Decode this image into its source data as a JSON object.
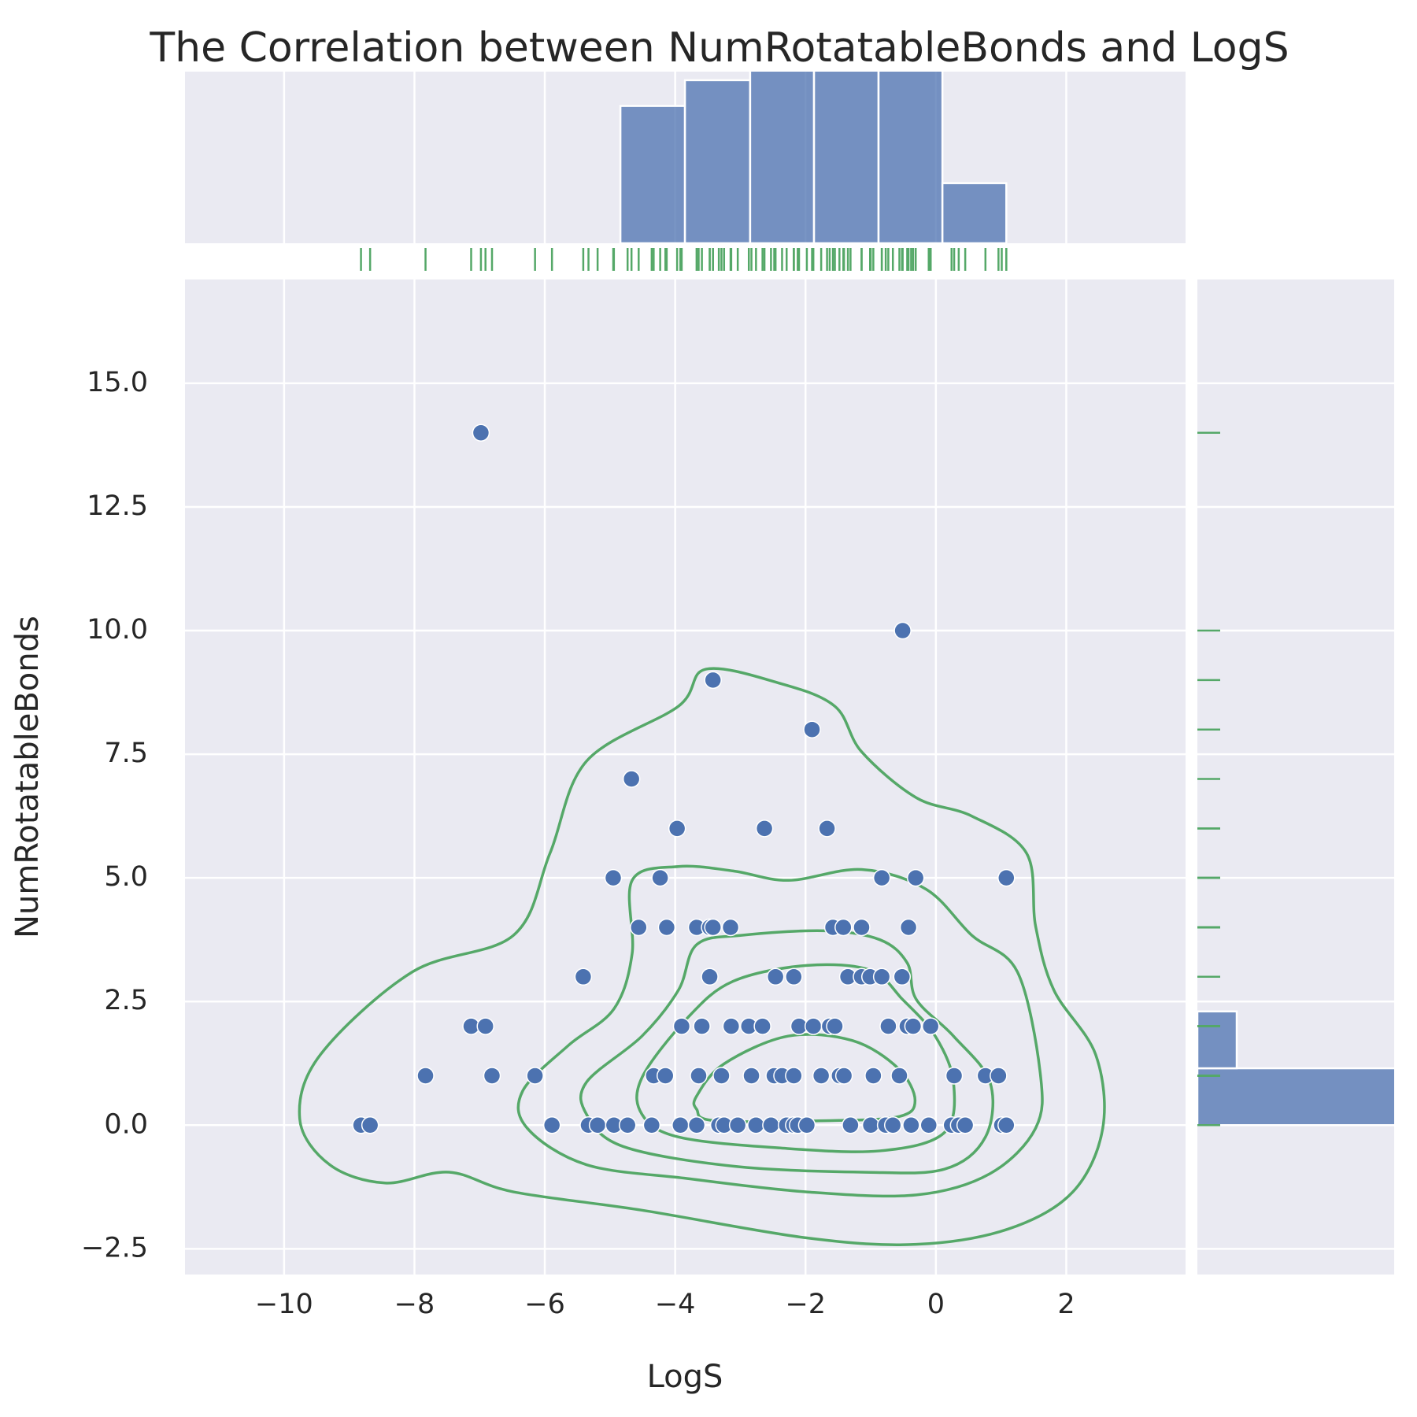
{
  "chart_data": {
    "type": "scatter",
    "title": "The Correlation between NumRotatableBonds and LogS",
    "xlabel": "LogS",
    "ylabel": "NumRotatableBonds",
    "color": "#4c72b0",
    "x": [
      -6.98,
      -0.51,
      -3.42,
      -1.9,
      -4.67,
      -3.97,
      -2.63,
      -1.67,
      -4.95,
      -4.23,
      -0.83,
      -0.31,
      1.08,
      -4.56,
      -4.13,
      -3.67,
      -3.47,
      -3.42,
      -3.15,
      -1.58,
      -1.42,
      -1.14,
      -0.42,
      -5.41,
      -3.47,
      -2.46,
      -2.18,
      -1.35,
      -1.14,
      -1.01,
      -0.83,
      -0.52,
      -7.13,
      -6.91,
      -3.9,
      -3.59,
      -3.14,
      -2.87,
      -2.66,
      -2.1,
      -1.88,
      -1.63,
      -1.55,
      -0.73,
      -0.44,
      -0.35,
      -0.08,
      -7.83,
      -6.81,
      -6.15,
      -4.33,
      -4.15,
      -3.64,
      -3.29,
      -2.83,
      -2.48,
      -2.36,
      -2.18,
      -1.76,
      -1.48,
      -1.41,
      -0.96,
      -0.56,
      0.28,
      0.76,
      0.96,
      -8.82,
      -8.68,
      -5.89,
      -5.33,
      -5.19,
      -4.94,
      -4.73,
      -4.36,
      -3.92,
      -3.67,
      -3.33,
      -3.25,
      -3.04,
      -2.76,
      -2.53,
      -2.29,
      -2.18,
      -2.12,
      -1.98,
      -1.31,
      -1.0,
      -0.77,
      -0.66,
      -0.38,
      -0.11,
      0.24,
      0.35,
      0.45,
      1.01,
      1.08
    ],
    "y": [
      14,
      10,
      9,
      8,
      7,
      6,
      6,
      6,
      5,
      5,
      5,
      5,
      5,
      4,
      4,
      4,
      4,
      4,
      4,
      4,
      4,
      4,
      4,
      3,
      3,
      3,
      3,
      3,
      3,
      3,
      3,
      3,
      2,
      2,
      2,
      2,
      2,
      2,
      2,
      2,
      2,
      2,
      2,
      2,
      2,
      2,
      2,
      1,
      1,
      1,
      1,
      1,
      1,
      1,
      1,
      1,
      1,
      1,
      1,
      1,
      1,
      1,
      1,
      1,
      1,
      1,
      0,
      0,
      0,
      0,
      0,
      0,
      0,
      0,
      0,
      0,
      0,
      0,
      0,
      0,
      0,
      0,
      0,
      0,
      0,
      0,
      0,
      0,
      0,
      0,
      0,
      0,
      0,
      0,
      0,
      0
    ],
    "xlim": [
      -11.52,
      3.83
    ],
    "ylim": [
      -3.02,
      17.1
    ],
    "xticks": [
      {
        "value": -10,
        "label": "−10"
      },
      {
        "value": -8,
        "label": "−8"
      },
      {
        "value": -6,
        "label": "−6"
      },
      {
        "value": -4,
        "label": "−4"
      },
      {
        "value": -2,
        "label": "−2"
      },
      0,
      2
    ],
    "yticks": [
      {
        "value": -2.5,
        "label": "−2.5"
      },
      {
        "value": 0,
        "label": "0.0"
      },
      {
        "value": 2.5,
        "label": "2.5"
      },
      {
        "value": 5,
        "label": "5.0"
      },
      {
        "value": 7.5,
        "label": "7.5"
      },
      {
        "value": 10,
        "label": "10.0"
      },
      {
        "value": 12.5,
        "label": "12.5"
      },
      {
        "value": 15,
        "label": "15.0"
      }
    ],
    "grid": true,
    "kde": {
      "color": "#55a868",
      "levels": [
        {
          "x": [
            -9.76,
            -9.44,
            -8.03,
            -6.48,
            -5.92,
            -5.36,
            -3.95,
            -3.53,
            -2.41,
            -1.55,
            -1.14,
            -0.3,
            0.55,
            1.39,
            1.53,
            1.81,
            2.45,
            2.56,
            2.1,
            1.11,
            -0.3,
            -1.98,
            -4.51,
            -6.48,
            -7.47,
            -8.45,
            -9.3
          ],
          "y": [
            0.13,
            1.43,
            3.1,
            3.84,
            5.5,
            7.36,
            8.47,
            9.22,
            8.94,
            8.47,
            7.55,
            6.62,
            6.25,
            5.5,
            4.02,
            2.73,
            1.43,
            -0.06,
            -1.35,
            -2.1,
            -2.41,
            -2.28,
            -1.72,
            -1.35,
            -0.95,
            -1.17,
            -0.8
          ]
        },
        {
          "x": [
            -6.34,
            -5.64,
            -4.94,
            -4.66,
            -4.66,
            -3.95,
            -3.11,
            -2.26,
            -1.14,
            -0.15,
            0.55,
            1.25,
            1.6,
            1.53,
            0.83,
            -0.3,
            -1.98,
            -3.81,
            -5.36,
            -6.27
          ],
          "y": [
            0.69,
            1.61,
            2.35,
            3.47,
            4.95,
            5.23,
            5.14,
            4.95,
            5.17,
            4.77,
            3.84,
            3.1,
            1.06,
            -0.06,
            -0.98,
            -1.41,
            -1.35,
            -1.08,
            -0.8,
            -0.06
          ]
        },
        {
          "x": [
            -5.36,
            -4.51,
            -3.95,
            -3.67,
            -2.97,
            -1.7,
            -0.86,
            -0.44,
            -0.3,
            0.27,
            0.83,
            0.76,
            0.13,
            -1.14,
            -3.11,
            -4.8,
            -5.36
          ],
          "y": [
            0.87,
            1.8,
            2.73,
            3.65,
            3.84,
            3.93,
            3.75,
            3.28,
            2.54,
            1.8,
            0.87,
            -0.24,
            -0.89,
            -0.95,
            -0.83,
            -0.43,
            0.22
          ]
        },
        {
          "x": [
            -4.51,
            -3.81,
            -3.11,
            -1.98,
            -1.0,
            -0.51,
            -0.01,
            0.27,
            0.13,
            -0.86,
            -2.41,
            -3.95,
            -4.51
          ],
          "y": [
            0.96,
            2.17,
            2.91,
            3.23,
            3.13,
            2.54,
            1.8,
            0.87,
            -0.15,
            -0.52,
            -0.46,
            -0.24,
            0.22
          ]
        },
        {
          "x": [
            -3.67,
            -3.25,
            -2.27,
            -1.28,
            -0.58,
            -0.32,
            -0.58,
            -1.7,
            -3.39,
            -3.67
          ],
          "y": [
            0.59,
            1.24,
            1.8,
            1.71,
            1.15,
            0.5,
            0.17,
            0.09,
            0.09,
            0.32
          ]
        }
      ]
    },
    "rug_color": "#55a868",
    "top_hist": {
      "bins": [
        -4.84,
        -3.85,
        -2.85,
        -1.87,
        -0.88,
        0.1,
        1.08
      ],
      "counts": [
        16,
        19,
        21,
        21,
        21,
        7
      ],
      "ylim": [
        0,
        20
      ]
    },
    "right_hist": {
      "bins": [
        0,
        1.15,
        2.3
      ],
      "counts": [
        49,
        4
      ],
      "xlim": [
        0,
        20
      ]
    }
  }
}
